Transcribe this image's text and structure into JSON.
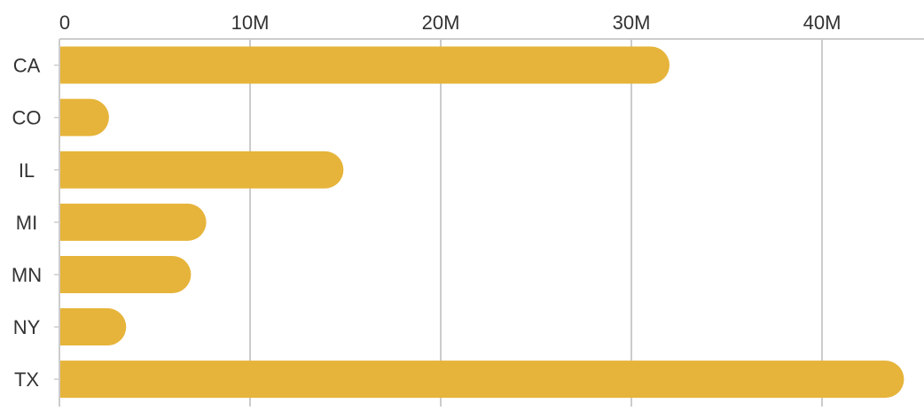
{
  "chart_data": {
    "type": "bar",
    "orientation": "horizontal",
    "categories": [
      "CA",
      "CO",
      "IL",
      "MI",
      "MN",
      "NY",
      "TX"
    ],
    "values": [
      32000000,
      2600000,
      14900000,
      7700000,
      6900000,
      3500000,
      44300000
    ],
    "xlim": [
      0,
      45000000
    ],
    "x_ticks": [
      0,
      10000000,
      20000000,
      30000000,
      40000000
    ],
    "x_tick_labels": [
      "0",
      "10M",
      "20M",
      "30M",
      "40M"
    ],
    "x_axis_position": "top",
    "grid": true,
    "legend": "none",
    "title": "",
    "xlabel": "",
    "ylabel": "",
    "colors": {
      "bar": "#e6b43a",
      "grid": "#cccccc",
      "axis": "#cccccc",
      "text": "#333333"
    }
  }
}
